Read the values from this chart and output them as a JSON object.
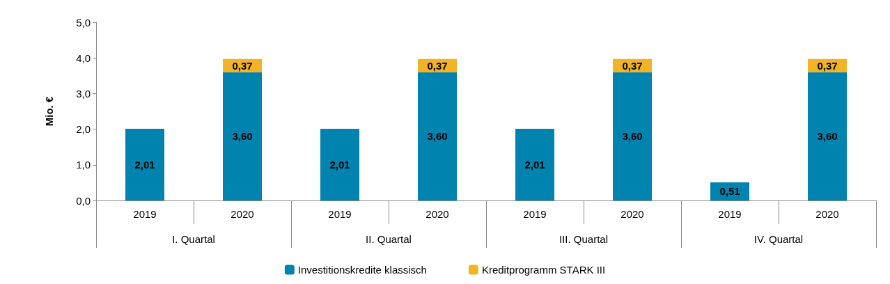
{
  "chart_data": {
    "type": "bar",
    "stacked": true,
    "ylabel": "Mio. €",
    "categories": [
      "2019",
      "2020",
      "2019",
      "2020",
      "2019",
      "2020",
      "2019",
      "2020"
    ],
    "annotations": [
      "I. Quartal",
      "II. Quartal",
      "III. Quartal",
      "IV. Quartal"
    ],
    "series": [
      {
        "name": "Investitionskredite klassisch",
        "color": "#0083ae",
        "values": [
          2.01,
          3.6,
          2.01,
          3.6,
          2.01,
          3.6,
          0.51,
          3.6
        ],
        "value_labels": [
          "2,01",
          "3,60",
          "2,01",
          "3,60",
          "2,01",
          "3,60",
          "0,51",
          "3,60"
        ]
      },
      {
        "name": "Kreditprogramm STARK III",
        "color": "#f2b324",
        "values": [
          null,
          0.37,
          null,
          0.37,
          null,
          0.37,
          null,
          0.37
        ],
        "value_labels": [
          null,
          "0,37",
          null,
          "0,37",
          null,
          "0,37",
          null,
          "0,37"
        ]
      }
    ],
    "ylim": [
      0,
      5
    ],
    "yticks": [
      {
        "value": 0,
        "label": "0,0"
      },
      {
        "value": 1,
        "label": "1,0"
      },
      {
        "value": 2,
        "label": "2,0"
      },
      {
        "value": 3,
        "label": "3,0"
      },
      {
        "value": 4,
        "label": "4,0"
      },
      {
        "value": 5,
        "label": "5,0"
      }
    ],
    "grid": false,
    "legend": "bottom"
  }
}
